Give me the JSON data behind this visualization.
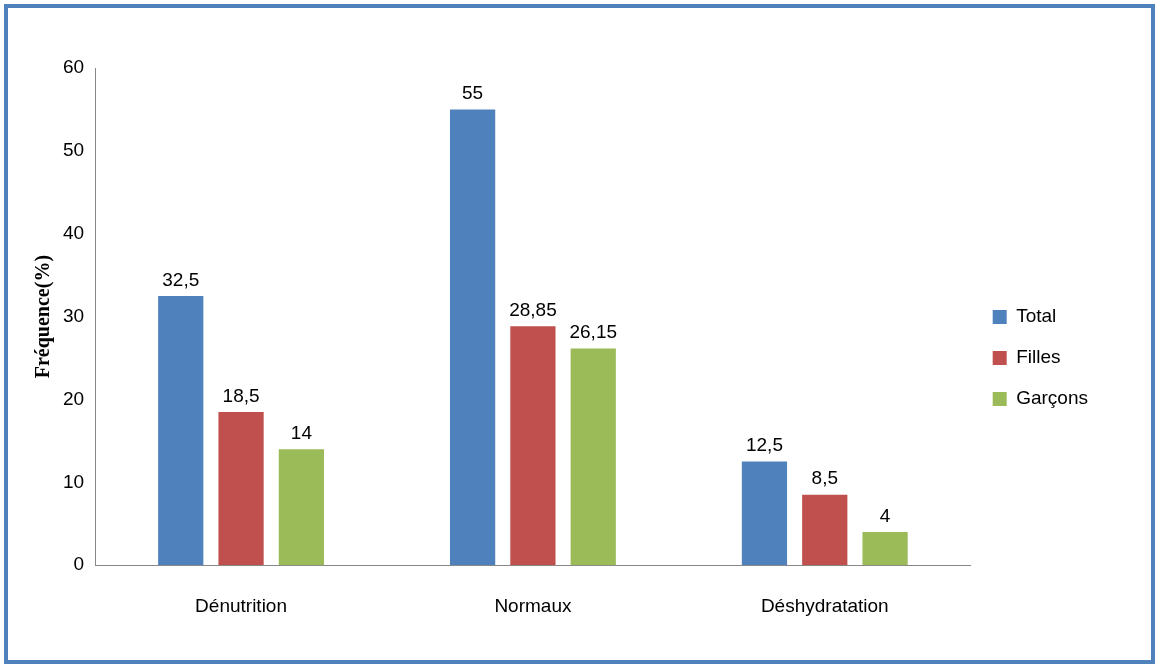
{
  "chart_data": {
    "type": "bar",
    "ylabel": "Fréquence(%)",
    "categories": [
      "Dénutrition",
      "Normaux",
      "Déshydratation"
    ],
    "series": [
      {
        "name": "Total",
        "color": "#4f81bd",
        "values": [
          32.5,
          55,
          12.5
        ],
        "value_labels": [
          "32,5",
          "55",
          "12,5"
        ]
      },
      {
        "name": "Filles",
        "color": "#c0504d",
        "values": [
          18.5,
          28.85,
          8.5
        ],
        "value_labels": [
          "18,5",
          "28,85",
          "8,5"
        ]
      },
      {
        "name": "Garçons",
        "color": "#9bbb59",
        "values": [
          14,
          26.15,
          4
        ],
        "value_labels": [
          "14",
          "26,15",
          "4"
        ]
      }
    ],
    "ylim": [
      0,
      60
    ],
    "yticks": [
      0,
      10,
      20,
      30,
      40,
      50,
      60
    ],
    "grid": false,
    "legend": "right"
  }
}
